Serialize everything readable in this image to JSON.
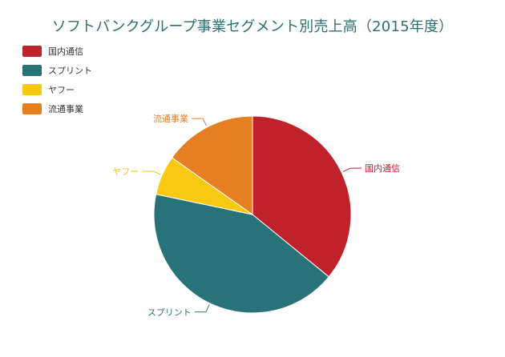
{
  "chart_data": {
    "type": "pie",
    "title": "ソフトバンクグループ事業セグメント別売上高（2015年度）",
    "categories": [
      "国内通信",
      "スプリント",
      "ヤフー",
      "流通事業"
    ],
    "values": [
      35.9,
      42.4,
      6.5,
      15.2
    ],
    "colors": [
      "#c0222c",
      "#28737a",
      "#f7c911",
      "#e67e22"
    ],
    "legend_position": "top-left",
    "start_angle": "top, clockwise"
  }
}
